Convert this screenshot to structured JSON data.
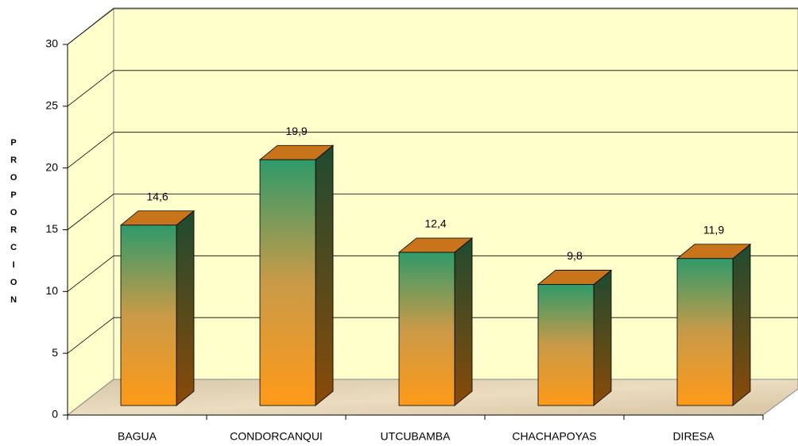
{
  "chart_data": {
    "type": "bar3d",
    "y_label": "PROPORCION",
    "categories": [
      "BAGUA",
      "CONDORCANQUI",
      "UTCUBAMBA",
      "CHACHAPOYAS",
      "DIRESA"
    ],
    "values": [
      14.6,
      19.9,
      12.4,
      9.8,
      11.9
    ],
    "value_labels": [
      "14,6",
      "19,9",
      "12,4",
      "9,8",
      "11,9"
    ],
    "ylim": [
      0,
      30
    ],
    "yticks": [
      0,
      5,
      10,
      15,
      20,
      25,
      30
    ],
    "grid": true
  }
}
